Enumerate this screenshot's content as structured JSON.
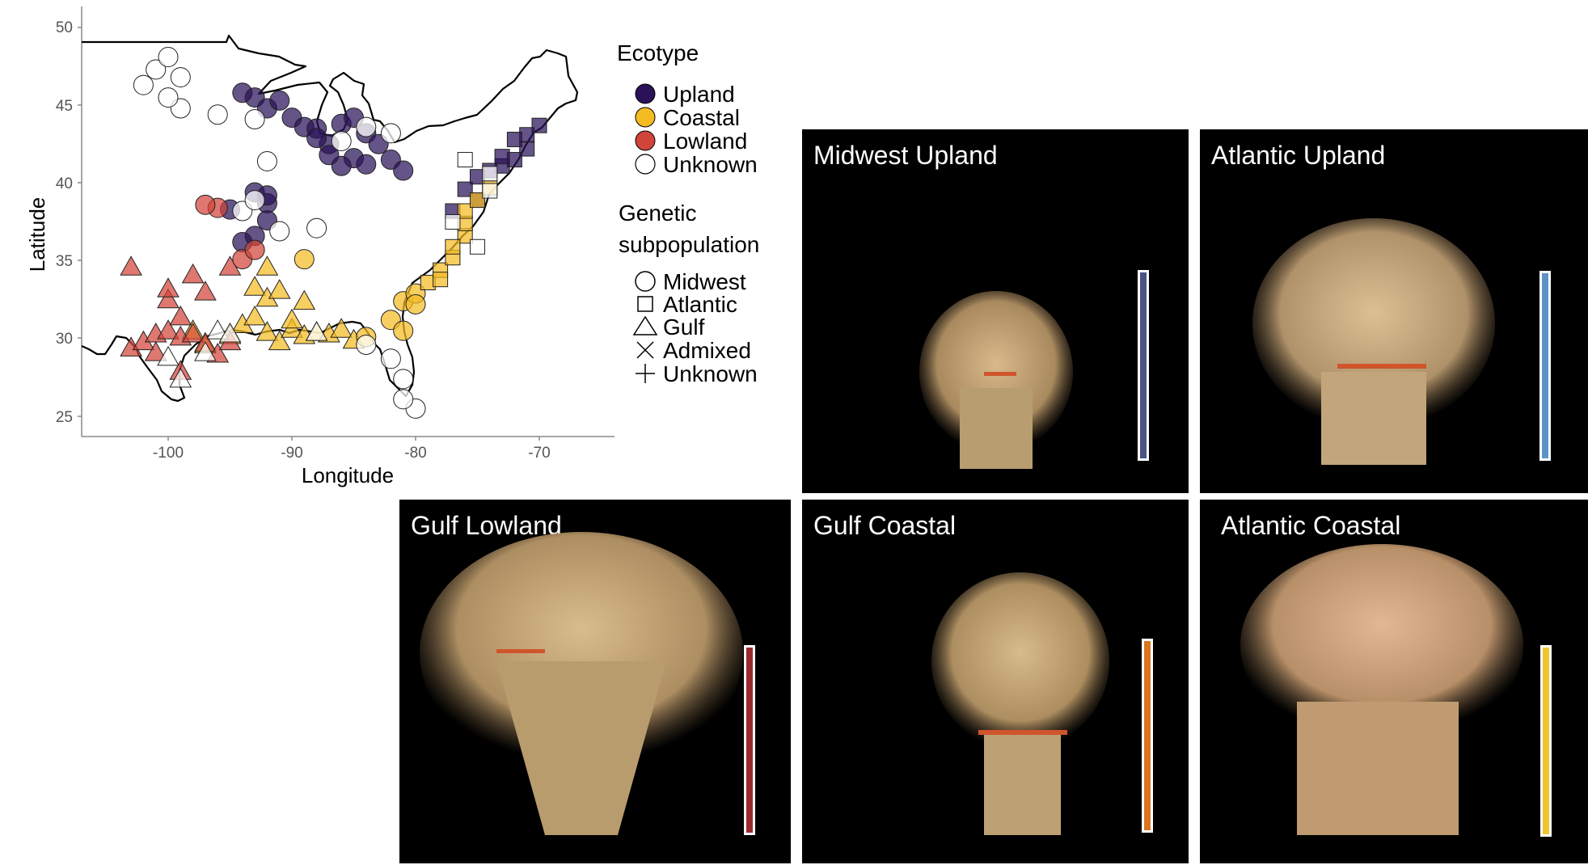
{
  "map": {
    "xlabel": "Longitude",
    "ylabel": "Latitude",
    "x_ticks": [
      "-100",
      "-90",
      "-80",
      "-70"
    ],
    "y_ticks": [
      "25",
      "30",
      "35",
      "40",
      "45",
      "50"
    ],
    "xlim": [
      -108,
      -65
    ],
    "ylim": [
      24,
      51
    ],
    "legend": {
      "ecotype_title": "Ecotype",
      "ecotype_items": [
        {
          "label": "Upland",
          "color": "#2a1259"
        },
        {
          "label": "Coastal",
          "color": "#f4bb22"
        },
        {
          "label": "Lowland",
          "color": "#d1443a"
        },
        {
          "label": "Unknown",
          "color": "#ffffff"
        }
      ],
      "subpop_title_line1": "Genetic",
      "subpop_title_line2": "subpopulation",
      "subpop_items": [
        {
          "label": "Midwest",
          "shape": "circle"
        },
        {
          "label": "Atlantic",
          "shape": "square"
        },
        {
          "label": "Gulf",
          "shape": "triangle"
        },
        {
          "label": "Admixed",
          "shape": "x"
        },
        {
          "label": "Unknown",
          "shape": "plus"
        }
      ]
    }
  },
  "chart_data": {
    "type": "scatter",
    "xlabel": "Longitude",
    "ylabel": "Latitude",
    "xlim": [
      -108,
      -65
    ],
    "ylim": [
      24,
      51
    ],
    "series": [
      {
        "name": "Upland",
        "color": "#2a1259",
        "points": [
          [
            -94,
            45.8
          ],
          [
            -93,
            45.5
          ],
          [
            -92,
            44.8
          ],
          [
            -91,
            45.3
          ],
          [
            -90,
            44.2
          ],
          [
            -89,
            43.6
          ],
          [
            -88,
            43.5
          ],
          [
            -87,
            42.5
          ],
          [
            -86,
            43.8
          ],
          [
            -85,
            44.2
          ],
          [
            -84,
            43.2
          ],
          [
            -83,
            42.5
          ],
          [
            -85,
            41.6
          ],
          [
            -86,
            41.1
          ],
          [
            -84,
            41.2
          ],
          [
            -82,
            41.5
          ],
          [
            -81,
            40.8
          ],
          [
            -87,
            41.8
          ],
          [
            -88,
            42.9
          ],
          [
            -92,
            38.7
          ],
          [
            -93,
            39.4
          ],
          [
            -92,
            37.6
          ],
          [
            -93,
            36.6
          ],
          [
            -95,
            38.3
          ],
          [
            -94,
            36.2
          ],
          [
            -92,
            39.2
          ],
          [
            -71,
            42.2
          ],
          [
            -72,
            41.5
          ],
          [
            -73,
            41.1
          ],
          [
            -74,
            40.8
          ],
          [
            -75,
            40.4
          ],
          [
            -70,
            43.7
          ],
          [
            -71,
            43.1
          ],
          [
            -72,
            42.8
          ],
          [
            -73,
            41.7
          ],
          [
            -76,
            39.6
          ],
          [
            -77,
            38.2
          ],
          [
            -75,
            38.9
          ]
        ]
      },
      {
        "name": "Coastal",
        "color": "#f4bb22",
        "points": [
          [
            -98,
            30.5
          ],
          [
            -97,
            29.6
          ],
          [
            -95,
            30.2
          ],
          [
            -94,
            30.9
          ],
          [
            -93,
            31.4
          ],
          [
            -92,
            30.4
          ],
          [
            -91,
            29.8
          ],
          [
            -90,
            30.6
          ],
          [
            -89,
            30.2
          ],
          [
            -88,
            30.4
          ],
          [
            -87,
            30.3
          ],
          [
            -86,
            30.6
          ],
          [
            -85,
            29.9
          ],
          [
            -84,
            30.1
          ],
          [
            -93,
            33.3
          ],
          [
            -92,
            34.6
          ],
          [
            -92,
            32.6
          ],
          [
            -91,
            33.1
          ],
          [
            -89,
            35.1
          ],
          [
            -89,
            32.4
          ],
          [
            -90,
            31.2
          ],
          [
            -82,
            31.2
          ],
          [
            -81,
            32.4
          ],
          [
            -80,
            32.9
          ],
          [
            -79,
            33.6
          ],
          [
            -78,
            34.4
          ],
          [
            -77,
            35.2
          ],
          [
            -76,
            36.6
          ],
          [
            -76,
            37.4
          ],
          [
            -76,
            38.2
          ],
          [
            -75,
            38.9
          ],
          [
            -74,
            39.7
          ],
          [
            -77,
            35.9
          ],
          [
            -80,
            32.2
          ],
          [
            -81,
            30.5
          ],
          [
            -78,
            33.8
          ]
        ]
      },
      {
        "name": "Lowland",
        "color": "#d1443a",
        "points": [
          [
            -103,
            29.4
          ],
          [
            -102,
            29.8
          ],
          [
            -101,
            30.3
          ],
          [
            -100,
            30.5
          ],
          [
            -99,
            30.1
          ],
          [
            -98,
            30.3
          ],
          [
            -97,
            29.7
          ],
          [
            -96,
            29.0
          ],
          [
            -95,
            29.8
          ],
          [
            -100,
            32.5
          ],
          [
            -99,
            31.4
          ],
          [
            -100,
            33.2
          ],
          [
            -97,
            33.0
          ],
          [
            -98,
            34.1
          ],
          [
            -95,
            34.6
          ],
          [
            -94,
            35.1
          ],
          [
            -93,
            35.7
          ],
          [
            -96,
            38.4
          ],
          [
            -97,
            38.6
          ],
          [
            -103,
            34.6
          ],
          [
            -101,
            29.1
          ],
          [
            -99,
            27.9
          ]
        ]
      },
      {
        "name": "Unknown",
        "color": "#ffffff",
        "points": [
          [
            -102,
            46.3
          ],
          [
            -101,
            47.3
          ],
          [
            -100,
            48.1
          ],
          [
            -99,
            46.8
          ],
          [
            -99,
            44.8
          ],
          [
            -100,
            45.5
          ],
          [
            -96,
            44.4
          ],
          [
            -93,
            44.1
          ],
          [
            -92,
            41.4
          ],
          [
            -88,
            37.1
          ],
          [
            -94,
            38.2
          ],
          [
            -93,
            38.9
          ],
          [
            -91,
            36.9
          ],
          [
            -86,
            42.7
          ],
          [
            -82,
            43.2
          ],
          [
            -84,
            43.6
          ],
          [
            -100,
            28.8
          ],
          [
            -99,
            27.4
          ],
          [
            -97,
            29.1
          ],
          [
            -96,
            30.5
          ],
          [
            -95,
            30.3
          ],
          [
            -88,
            30.4
          ],
          [
            -84,
            29.6
          ],
          [
            -82,
            28.7
          ],
          [
            -81,
            27.4
          ],
          [
            -80,
            25.5
          ],
          [
            -81,
            26.1
          ],
          [
            -75,
            35.9
          ],
          [
            -74,
            40.6
          ],
          [
            -76,
            41.5
          ],
          [
            -74,
            39.5
          ],
          [
            -77,
            37.5
          ]
        ]
      }
    ]
  },
  "photos": [
    {
      "title": "Midwest Upland",
      "bar_color": "#4a5384"
    },
    {
      "title": "Atlantic Upland",
      "bar_color": "#5c93c6"
    },
    {
      "title": "Gulf Lowland",
      "bar_color": "#9b2a2e"
    },
    {
      "title": "Gulf Coastal",
      "bar_color": "#d9761f"
    },
    {
      "title": "Atlantic Coastal",
      "bar_color": "#f0c42c"
    }
  ]
}
